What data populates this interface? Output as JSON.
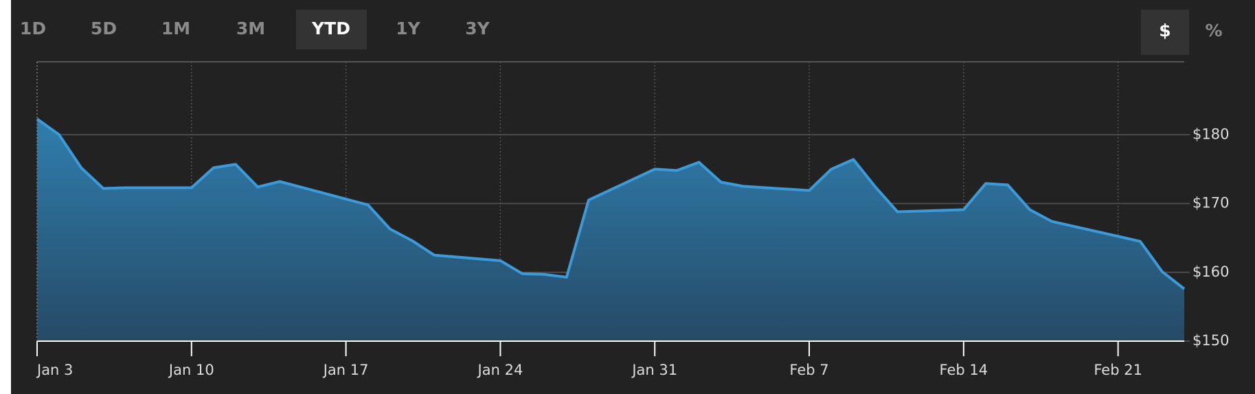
{
  "range_tabs": [
    "1D",
    "5D",
    "1M",
    "3M",
    "YTD",
    "1Y",
    "3Y"
  ],
  "active_range": 4,
  "unit_tabs": [
    "$",
    "%"
  ],
  "active_unit": 0,
  "chart_data": {
    "type": "area",
    "x": [
      "Jan 3",
      "Jan 4",
      "Jan 5",
      "Jan 6",
      "Jan 7",
      "Jan 10",
      "Jan 11",
      "Jan 12",
      "Jan 13",
      "Jan 14",
      "Jan 18",
      "Jan 19",
      "Jan 20",
      "Jan 21",
      "Jan 24",
      "Jan 25",
      "Jan 26",
      "Jan 27",
      "Jan 28",
      "Jan 31",
      "Feb 1",
      "Feb 2",
      "Feb 3",
      "Feb 4",
      "Feb 7",
      "Feb 8",
      "Feb 9",
      "Feb 10",
      "Feb 11",
      "Feb 14",
      "Feb 15",
      "Feb 16",
      "Feb 17",
      "Feb 18",
      "Feb 22",
      "Feb 23",
      "Feb 24"
    ],
    "series": [
      {
        "color": "#3d9ad8",
        "values": [
          182.3,
          180,
          175.2,
          172.2,
          172.3,
          172.3,
          175.2,
          175.7,
          172.4,
          173.2,
          169.8,
          166.3,
          164.6,
          162.5,
          161.7,
          159.8,
          159.7,
          159.3,
          170.5,
          175,
          174.8,
          176,
          173.1,
          172.5,
          171.9,
          175,
          176.4,
          172.4,
          168.8,
          169.1,
          172.9,
          172.7,
          169.1,
          167.4,
          164.5,
          160.1,
          157.6
        ]
      }
    ],
    "xlim": [
      "Jan 3",
      "Feb 24"
    ],
    "xticks": [
      "Jan 3",
      "Jan 10",
      "Jan 17",
      "Jan 24",
      "Jan 31",
      "Feb 7",
      "Feb 14",
      "Feb 21"
    ],
    "ylim": [
      150,
      190.6
    ],
    "yticks": [
      {
        "value": 150,
        "label": "$150"
      },
      {
        "value": 160,
        "label": "$160"
      },
      {
        "value": 170,
        "label": "$170"
      },
      {
        "value": 180,
        "label": "$180"
      }
    ],
    "grid": true
  }
}
